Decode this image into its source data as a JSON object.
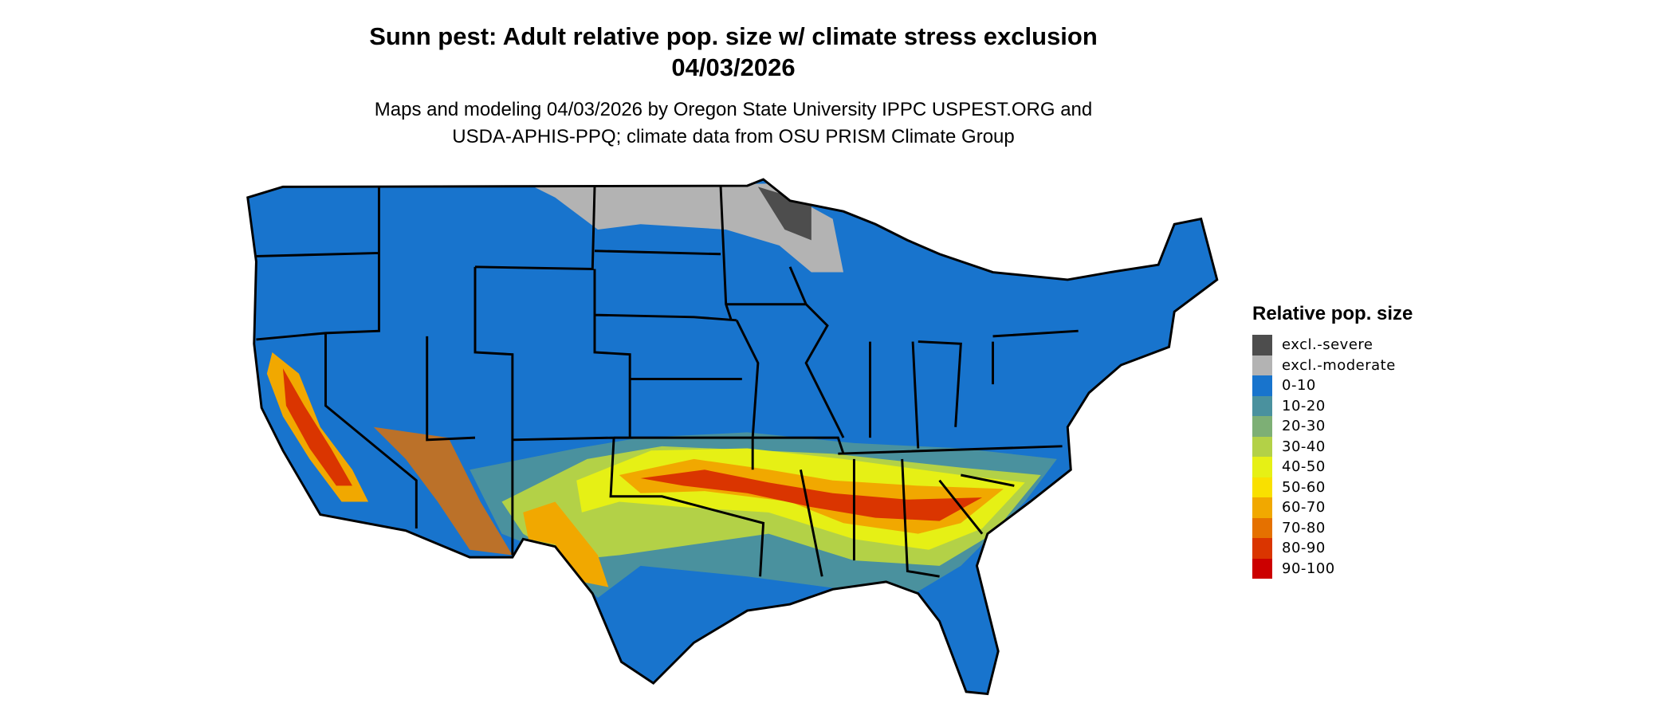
{
  "title_line1": "Sunn pest: Adult relative pop. size w/ climate stress exclusion",
  "title_line2": "04/03/2026",
  "subtitle_line1": "Maps and modeling 04/03/2026 by Oregon State University IPPC USPEST.ORG and",
  "subtitle_line2": "USDA-APHIS-PPQ; climate data from OSU PRISM Climate Group",
  "legend": {
    "title": "Relative pop. size",
    "items": [
      {
        "label": "excl.-severe",
        "color": "#4d4d4d"
      },
      {
        "label": "excl.-moderate",
        "color": "#b3b3b3"
      },
      {
        "label": "0-10",
        "color": "#1874cd"
      },
      {
        "label": "10-20",
        "color": "#4a919e"
      },
      {
        "label": "20-30",
        "color": "#7daf75"
      },
      {
        "label": "30-40",
        "color": "#b3d147"
      },
      {
        "label": "40-50",
        "color": "#e6f015"
      },
      {
        "label": "50-60",
        "color": "#f9e000"
      },
      {
        "label": "60-70",
        "color": "#f1a800"
      },
      {
        "label": "70-80",
        "color": "#e57100"
      },
      {
        "label": "80-90",
        "color": "#da3500"
      },
      {
        "label": "90-100",
        "color": "#cc0000"
      }
    ]
  }
}
